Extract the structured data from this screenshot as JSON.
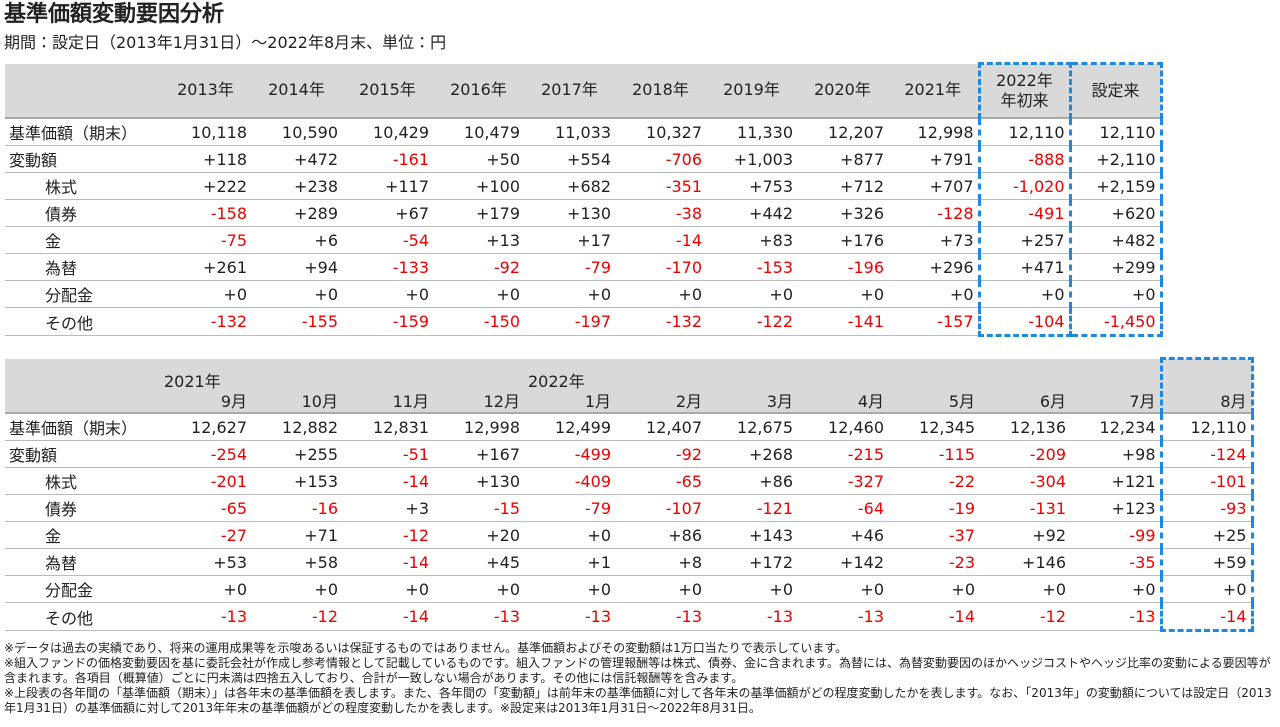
{
  "header": {
    "title": "基準価額変動要因分析",
    "subtitle": "期間：設定日（2013年1月31日）～2022年8月末、単位：円"
  },
  "table1": {
    "columns": [
      [
        "2013年"
      ],
      [
        "2014年"
      ],
      [
        "2015年"
      ],
      [
        "2016年"
      ],
      [
        "2017年"
      ],
      [
        "2018年"
      ],
      [
        "2019年"
      ],
      [
        "2020年"
      ],
      [
        "2021年"
      ],
      [
        "2022年",
        "年初来"
      ],
      [
        "設定来"
      ]
    ],
    "rows": [
      {
        "label": "基準価額（期末）",
        "cells": [
          "10,118",
          "10,590",
          "10,429",
          "10,479",
          "11,033",
          "10,327",
          "11,330",
          "12,207",
          "12,998",
          "12,110",
          "12,110"
        ]
      },
      {
        "label": "変動額",
        "cells": [
          "+118",
          "+472",
          "-161",
          "+50",
          "+554",
          "-706",
          "+1,003",
          "+877",
          "+791",
          "-888",
          "+2,110"
        ]
      },
      {
        "label": "株式",
        "cells": [
          "+222",
          "+238",
          "+117",
          "+100",
          "+682",
          "-351",
          "+753",
          "+712",
          "+707",
          "-1,020",
          "+2,159"
        ]
      },
      {
        "label": "債券",
        "cells": [
          "-158",
          "+289",
          "+67",
          "+179",
          "+130",
          "-38",
          "+442",
          "+326",
          "-128",
          "-491",
          "+620"
        ]
      },
      {
        "label": "金",
        "cells": [
          "-75",
          "+6",
          "-54",
          "+13",
          "+17",
          "-14",
          "+83",
          "+176",
          "+73",
          "+257",
          "+482"
        ]
      },
      {
        "label": "為替",
        "cells": [
          "+261",
          "+94",
          "-133",
          "-92",
          "-79",
          "-170",
          "-153",
          "-196",
          "+296",
          "+471",
          "+299"
        ]
      },
      {
        "label": "分配金",
        "cells": [
          "+0",
          "+0",
          "+0",
          "+0",
          "+0",
          "+0",
          "+0",
          "+0",
          "+0",
          "+0",
          "+0"
        ]
      },
      {
        "label": "その他",
        "cells": [
          "-132",
          "-155",
          "-159",
          "-150",
          "-197",
          "-132",
          "-122",
          "-141",
          "-157",
          "-104",
          "-1,450"
        ]
      }
    ]
  },
  "table2": {
    "columns": [
      {
        "year": "2021年",
        "month": "9月"
      },
      {
        "year": null,
        "month": "10月"
      },
      {
        "year": null,
        "month": "11月"
      },
      {
        "year": null,
        "month": "12月"
      },
      {
        "year": "2022年",
        "month": "1月"
      },
      {
        "year": null,
        "month": "2月"
      },
      {
        "year": null,
        "month": "3月"
      },
      {
        "year": null,
        "month": "4月"
      },
      {
        "year": null,
        "month": "5月"
      },
      {
        "year": null,
        "month": "6月"
      },
      {
        "year": null,
        "month": "7月"
      },
      {
        "year": null,
        "month": "8月"
      }
    ],
    "rows": [
      {
        "label": "基準価額（期末）",
        "cells": [
          "12,627",
          "12,882",
          "12,831",
          "12,998",
          "12,499",
          "12,407",
          "12,675",
          "12,460",
          "12,345",
          "12,136",
          "12,234",
          "12,110"
        ]
      },
      {
        "label": "変動額",
        "cells": [
          "-254",
          "+255",
          "-51",
          "+167",
          "-499",
          "-92",
          "+268",
          "-215",
          "-115",
          "-209",
          "+98",
          "-124"
        ]
      },
      {
        "label": "株式",
        "cells": [
          "-201",
          "+153",
          "-14",
          "+130",
          "-409",
          "-65",
          "+86",
          "-327",
          "-22",
          "-304",
          "+121",
          "-101"
        ]
      },
      {
        "label": "債券",
        "cells": [
          "-65",
          "-16",
          "+3",
          "-15",
          "-79",
          "-107",
          "-121",
          "-64",
          "-19",
          "-131",
          "+123",
          "-93"
        ]
      },
      {
        "label": "金",
        "cells": [
          "-27",
          "+71",
          "-12",
          "+20",
          "+0",
          "+86",
          "+143",
          "+46",
          "-37",
          "+92",
          "-99",
          "+25"
        ]
      },
      {
        "label": "為替",
        "cells": [
          "+53",
          "+58",
          "-14",
          "+45",
          "+1",
          "+8",
          "+172",
          "+142",
          "-23",
          "+146",
          "-35",
          "+59"
        ]
      },
      {
        "label": "分配金",
        "cells": [
          "+0",
          "+0",
          "+0",
          "+0",
          "+0",
          "+0",
          "+0",
          "+0",
          "+0",
          "+0",
          "+0",
          "+0"
        ]
      },
      {
        "label": "その他",
        "cells": [
          "-13",
          "-12",
          "-14",
          "-13",
          "-13",
          "-13",
          "-13",
          "-13",
          "-14",
          "-12",
          "-13",
          "-14"
        ]
      }
    ]
  },
  "notes": [
    "※データは過去の実績であり、将来の運用成果等を示唆あるいは保証するものではありません。基準価額およびその変動額は1万口当たりで表示しています。",
    "※組入ファンドの価格変動要因を基に委託会社が作成し参考情報として記載しているものです。組入ファンドの管理報酬等は株式、債券、金に含まれます。為替には、為替変動要因のほかヘッジコストやヘッジ比率の変動による要因等が含まれます。各項目（概算値）ごとに円未満は四捨五入しており、合計が一致しない場合があります。その他には信託報酬等を含みます。",
    "※上段表の各年間の「基準価額（期末）」は各年末の基準価額を表します。また、各年間の「変動額」は前年末の基準価額に対して各年末の基準価額がどの程度変動したかを表します。なお、「2013年」の変動額については設定日（2013年1月31日）の基準価額に対して2013年年末の基準価額がどの程度変動したかを表します。※設定来は2013年1月31日～2022年8月31日。"
  ]
}
